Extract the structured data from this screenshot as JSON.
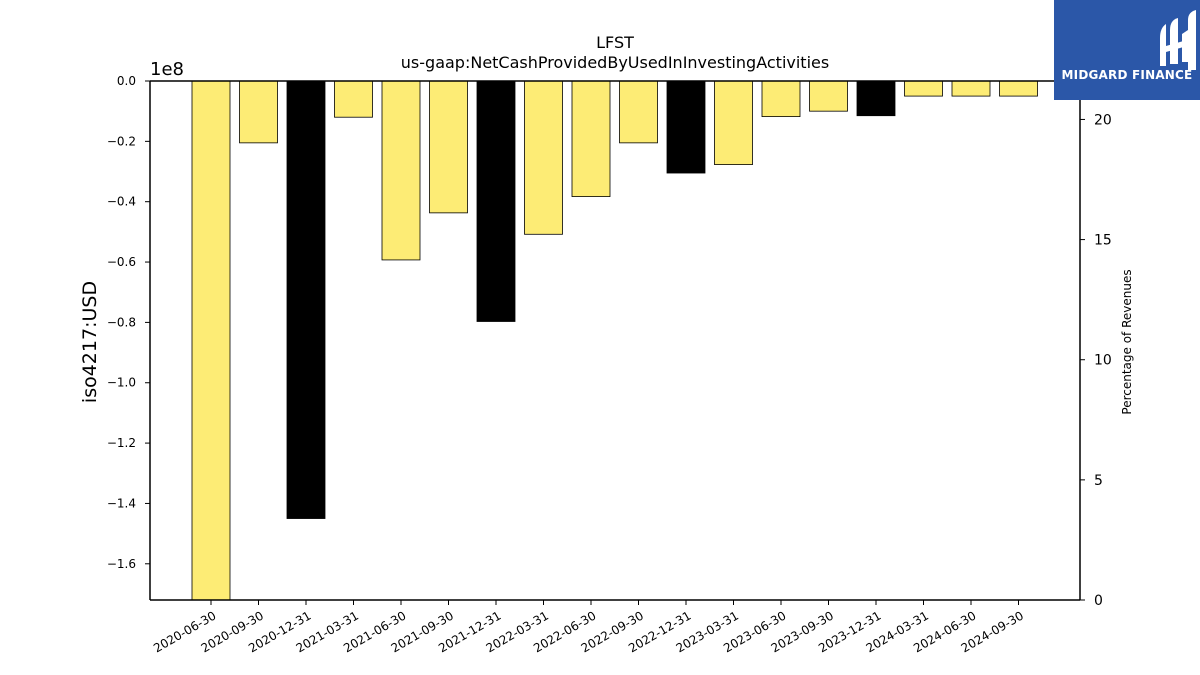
{
  "logo": {
    "text": "MIDGARD FINANCE",
    "background": "#2b57a8"
  },
  "chart_data": {
    "type": "bar",
    "title": "LFST",
    "subtitle": "us-gaap:NetCashProvidedByUsedInInvestingActivities",
    "ylabel": "iso4217:USD",
    "y_offset_label": "1e8",
    "y2label": "Percentage of Revenues",
    "ylim": [
      -1.72,
      0
    ],
    "y_ticks": [
      0.0,
      -0.2,
      -0.4,
      -0.6,
      -0.8,
      -1.0,
      -1.2,
      -1.4,
      -1.6
    ],
    "y_tick_labels": [
      "0.0",
      "−0.2",
      "−0.4",
      "−0.6",
      "−0.8",
      "−1.0",
      "−1.2",
      "−1.4",
      "−1.6"
    ],
    "y2lim": [
      0,
      21.6
    ],
    "y2_ticks": [
      0,
      5,
      10,
      15,
      20
    ],
    "y2_tick_labels": [
      "0",
      "5",
      "10",
      "15",
      "20"
    ],
    "categories": [
      "2020-06-30",
      "2020-09-30",
      "2020-12-31",
      "2021-03-31",
      "2021-06-30",
      "2021-09-30",
      "2021-12-31",
      "2022-03-31",
      "2022-06-30",
      "2022-09-30",
      "2022-12-31",
      "2023-03-31",
      "2023-06-30",
      "2023-09-30",
      "2023-12-31",
      "2024-03-31",
      "2024-06-30",
      "2024-09-30"
    ],
    "values": [
      -1.72,
      -0.205,
      -1.45,
      -0.12,
      -0.593,
      -0.437,
      -0.797,
      -0.508,
      -0.383,
      -0.205,
      -0.305,
      -0.277,
      -0.118,
      -0.1,
      -0.115,
      -0.05,
      -0.05,
      -0.05
    ],
    "bar_colors": [
      "#fdec75",
      "#fdec75",
      "#000000",
      "#fdec75",
      "#fdec75",
      "#fdec75",
      "#000000",
      "#fdec75",
      "#fdec75",
      "#fdec75",
      "#000000",
      "#fdec75",
      "#fdec75",
      "#fdec75",
      "#000000",
      "#fdec75",
      "#fdec75",
      "#fdec75"
    ],
    "grid": false,
    "legend": "none"
  }
}
